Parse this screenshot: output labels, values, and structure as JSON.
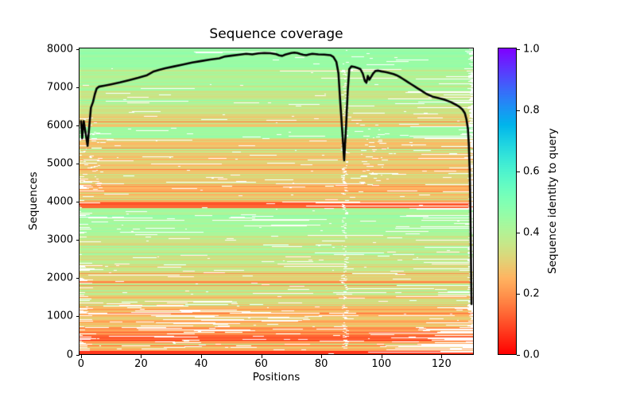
{
  "title": "Sequence coverage",
  "xlabel": "Positions",
  "ylabel": "Sequences",
  "colorbar": {
    "label": "Sequence identity to query",
    "ticks": [
      "0.0",
      "0.2",
      "0.4",
      "0.6",
      "0.8",
      "1.0"
    ],
    "min": 0.0,
    "max": 1.0,
    "colormap": "rainbow_r"
  },
  "axes": {
    "x_ticks": [
      0,
      20,
      40,
      60,
      80,
      100,
      120
    ],
    "y_ticks": [
      0,
      1000,
      2000,
      3000,
      4000,
      5000,
      6000,
      7000,
      8000
    ],
    "xlim": [
      -0.5,
      130.5
    ],
    "ylim": [
      0,
      8000
    ]
  },
  "colors": {
    "background": "#ffffff",
    "coverage_line": "#000000",
    "gap": "#ffffff",
    "axis": "#000000"
  },
  "chart_data": {
    "type": "heatmap",
    "description": "MSA sequence coverage: ~8000 aligned sequences (rows, sorted in identity bands) over 131 positions (columns), colored by sequence identity to query with matplotlib rainbow_r colormap (0=red, 1=violet); white = no coverage. Black overlay line = number of sequences covering each position (left axis).",
    "n_sequences": 8000,
    "n_positions": 131,
    "coverage_line": {
      "x": [
        0,
        0.4,
        0.9,
        1.5,
        2.2,
        2.8,
        3.3,
        4,
        4.6,
        5.2,
        6,
        8,
        10,
        13,
        16,
        19,
        22,
        24,
        26,
        28,
        31,
        34,
        37,
        40,
        43,
        46,
        48,
        50,
        53,
        55,
        57,
        59,
        61,
        63,
        65,
        66,
        67,
        68,
        70,
        71,
        72,
        73,
        74,
        75,
        76,
        77,
        79,
        81,
        83,
        84,
        85,
        85.7,
        86.3,
        87,
        87.6,
        88.2,
        88.8,
        89.3,
        90,
        91,
        92,
        93,
        93.8,
        94.5,
        95,
        95.5,
        96,
        96.6,
        97.3,
        98,
        99,
        100,
        101,
        102,
        103,
        104,
        105,
        106,
        107,
        108,
        109,
        110,
        111,
        112,
        113,
        114,
        115,
        117,
        119,
        121,
        123,
        125,
        126,
        127,
        127.8,
        128.3,
        128.8,
        129.1,
        129.4,
        129.6,
        129.8,
        130
      ],
      "count": [
        6100,
        5650,
        6100,
        5800,
        5450,
        6000,
        6450,
        6600,
        6800,
        6950,
        7000,
        7030,
        7060,
        7110,
        7170,
        7230,
        7300,
        7390,
        7440,
        7480,
        7530,
        7580,
        7630,
        7670,
        7710,
        7740,
        7790,
        7810,
        7840,
        7860,
        7845,
        7870,
        7880,
        7875,
        7850,
        7820,
        7805,
        7840,
        7880,
        7890,
        7880,
        7855,
        7835,
        7825,
        7845,
        7860,
        7845,
        7840,
        7825,
        7780,
        7650,
        7350,
        6600,
        5800,
        5070,
        5900,
        6900,
        7460,
        7530,
        7515,
        7490,
        7460,
        7340,
        7150,
        7100,
        7280,
        7180,
        7260,
        7350,
        7410,
        7420,
        7400,
        7385,
        7370,
        7350,
        7330,
        7300,
        7260,
        7210,
        7160,
        7110,
        7060,
        7010,
        6960,
        6910,
        6860,
        6810,
        6740,
        6700,
        6660,
        6600,
        6520,
        6470,
        6400,
        6300,
        6150,
        5900,
        5500,
        4800,
        3900,
        2600,
        1310
      ]
    },
    "identity_bands": [
      {
        "from": 0,
        "to": 90,
        "identity": 0.06,
        "jitter": 0.03
      },
      {
        "from": 90,
        "to": 350,
        "identity": 0.24,
        "jitter": 0.06
      },
      {
        "from": 350,
        "to": 550,
        "identity": 0.15,
        "jitter": 0.04
      },
      {
        "from": 550,
        "to": 700,
        "identity": 0.22,
        "jitter": 0.05
      },
      {
        "from": 700,
        "to": 1300,
        "identity": 0.27,
        "jitter": 0.05
      },
      {
        "from": 1300,
        "to": 2400,
        "identity": 0.33,
        "jitter": 0.055
      },
      {
        "from": 2400,
        "to": 3150,
        "identity": 0.38,
        "jitter": 0.04
      },
      {
        "from": 3150,
        "to": 3820,
        "identity": 0.43,
        "jitter": 0.03
      },
      {
        "from": 3820,
        "to": 3960,
        "identity": 0.1,
        "jitter": 0.04
      },
      {
        "from": 3960,
        "to": 4400,
        "identity": 0.26,
        "jitter": 0.05
      },
      {
        "from": 4400,
        "to": 5000,
        "identity": 0.3,
        "jitter": 0.05
      },
      {
        "from": 5000,
        "to": 5650,
        "identity": 0.29,
        "jitter": 0.05
      },
      {
        "from": 5650,
        "to": 5950,
        "identity": 0.44,
        "jitter": 0.02
      },
      {
        "from": 5950,
        "to": 6300,
        "identity": 0.31,
        "jitter": 0.06
      },
      {
        "from": 6300,
        "to": 6900,
        "identity": 0.36,
        "jitter": 0.04
      },
      {
        "from": 6900,
        "to": 7500,
        "identity": 0.41,
        "jitter": 0.04
      },
      {
        "from": 7500,
        "to": 8000,
        "identity": 0.45,
        "jitter": 0.015
      }
    ],
    "render_hints": {
      "seed": 7,
      "stripe_probability": 0.12,
      "gap_column": {
        "x": 87,
        "width": 1.8,
        "prob": 0.45,
        "max_seq": 7650
      },
      "speckle_cluster": {
        "x_from": 93,
        "x_to": 104,
        "seq_from": 4400,
        "seq_to": 5900,
        "prob": 0.5
      },
      "left_speckles": {
        "seq_from": 4300,
        "seq_to": 6200,
        "prob": 0.4
      },
      "red_band_tail": {
        "seq_from": 3820,
        "seq_to": 3960,
        "prob": 0.45
      },
      "lower_left_streaks": {
        "seq_from": 400,
        "seq_to": 1400,
        "prob": 0.5
      }
    }
  }
}
